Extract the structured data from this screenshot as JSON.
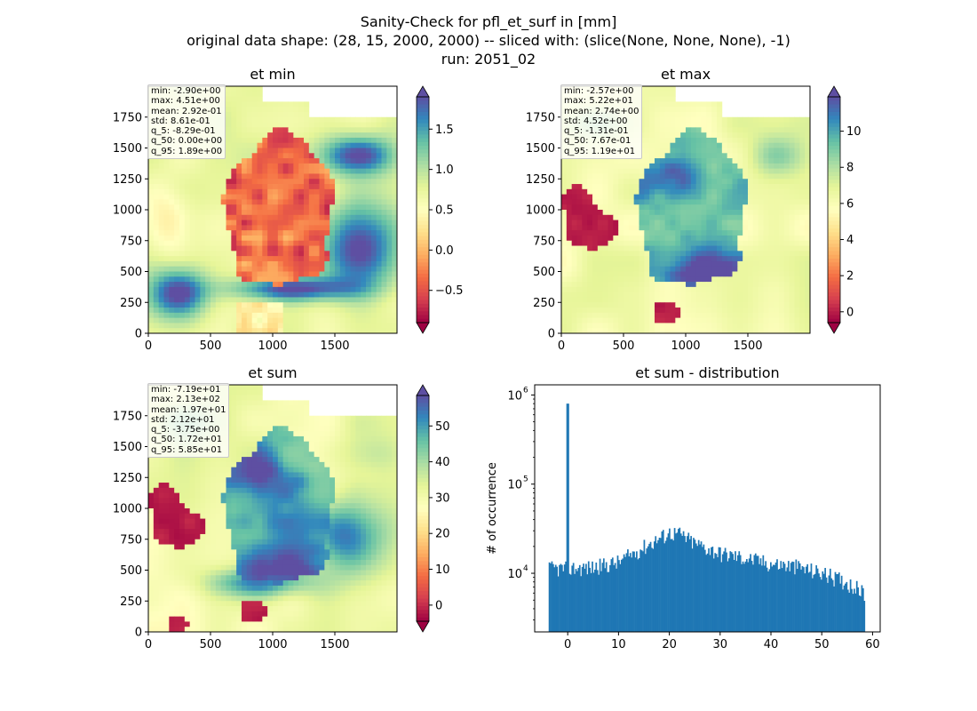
{
  "figure": {
    "title_lines": [
      "Sanity-Check for pfl_et_surf in [mm]",
      "original data shape: (28, 15, 2000, 2000) -- sliced with: (slice(None, None, None), -1)",
      "run: 2051_02"
    ]
  },
  "chart_data": [
    {
      "type": "heatmap",
      "title": "et min",
      "xticks": [
        0,
        500,
        1000,
        1500
      ],
      "yticks": [
        0,
        250,
        500,
        750,
        1000,
        1250,
        1500,
        1750
      ],
      "xlim": [
        0,
        2000
      ],
      "ylim": [
        0,
        2000
      ],
      "colormap": "Spectral",
      "colorbar": {
        "min": -0.9,
        "max": 1.9,
        "ticks": [
          -0.5,
          0.0,
          0.5,
          1.0,
          1.5
        ],
        "tick_labels": [
          "−0.5",
          "0.0",
          "0.5",
          "1.0",
          "1.5"
        ],
        "extend": "both"
      },
      "stats": [
        "min: -2.90e+00",
        "max: 4.51e+00",
        "mean: 2.92e-01",
        "std: 8.61e-01",
        "q_5: -8.29e-01",
        "q_50: 0.00e+00",
        "q_95: 1.89e+00"
      ]
    },
    {
      "type": "heatmap",
      "title": "et max",
      "xticks": [
        0,
        500,
        1000,
        1500
      ],
      "yticks": [
        0,
        250,
        500,
        750,
        1000,
        1250,
        1500,
        1750
      ],
      "xlim": [
        0,
        2000
      ],
      "ylim": [
        0,
        2000
      ],
      "colormap": "Spectral",
      "colorbar": {
        "min": -0.6,
        "max": 11.9,
        "ticks": [
          0,
          2,
          4,
          6,
          8,
          10
        ],
        "tick_labels": [
          "0",
          "2",
          "4",
          "6",
          "8",
          "10"
        ],
        "extend": "both"
      },
      "stats": [
        "min: -2.57e+00",
        "max: 5.22e+01",
        "mean: 2.74e+00",
        "std: 4.52e+00",
        "q_5: -1.31e-01",
        "q_50: 7.67e-01",
        "q_95: 1.19e+01"
      ]
    },
    {
      "type": "heatmap",
      "title": "et sum",
      "xticks": [
        0,
        500,
        1000,
        1500
      ],
      "yticks": [
        0,
        250,
        500,
        750,
        1000,
        1250,
        1500,
        1750
      ],
      "xlim": [
        0,
        2000
      ],
      "ylim": [
        0,
        2000
      ],
      "colormap": "Spectral",
      "colorbar": {
        "min": -4.5,
        "max": 58.5,
        "ticks": [
          0,
          10,
          20,
          30,
          40,
          50
        ],
        "tick_labels": [
          "0",
          "10",
          "20",
          "30",
          "40",
          "50"
        ],
        "extend": "both"
      },
      "stats": [
        "min: -7.19e+01",
        "max: 2.13e+02",
        "mean: 1.97e+01",
        "std: 2.12e+01",
        "q_5: -3.75e+00",
        "q_50: 1.72e+01",
        "q_95: 5.85e+01"
      ]
    },
    {
      "type": "bar",
      "title": "et sum - distribution",
      "xlabel": "",
      "ylabel": "# of occurrence",
      "yscale": "log",
      "xticks": [
        0,
        10,
        20,
        30,
        40,
        50,
        60
      ],
      "xlim": [
        -6.5,
        61.5
      ],
      "ylim": [
        2200,
        1300000
      ],
      "yticks": [
        10000,
        100000,
        1000000
      ],
      "ytick_labels": [
        [
          "10",
          "4"
        ],
        [
          "10",
          "5"
        ],
        [
          "10",
          "6"
        ]
      ],
      "bin_range": [
        -3.75,
        58.5
      ],
      "bin_count": 250,
      "bar_color": "#1f77b4",
      "shape_knots": [
        [
          -3.75,
          11500
        ],
        [
          0,
          11500
        ],
        [
          5,
          11800
        ],
        [
          10,
          13500
        ],
        [
          15,
          20000
        ],
        [
          20,
          29000
        ],
        [
          22,
          28000
        ],
        [
          25,
          22000
        ],
        [
          30,
          17000
        ],
        [
          35,
          15000
        ],
        [
          40,
          13000
        ],
        [
          45,
          12000
        ],
        [
          50,
          10200
        ],
        [
          55,
          8000
        ],
        [
          58.5,
          6000
        ]
      ],
      "spike": {
        "x": 0.0,
        "count": 800000
      }
    }
  ],
  "colors": {
    "bar": "#1f77b4",
    "axis": "#000000",
    "stats_border": "#c8c8c8"
  }
}
